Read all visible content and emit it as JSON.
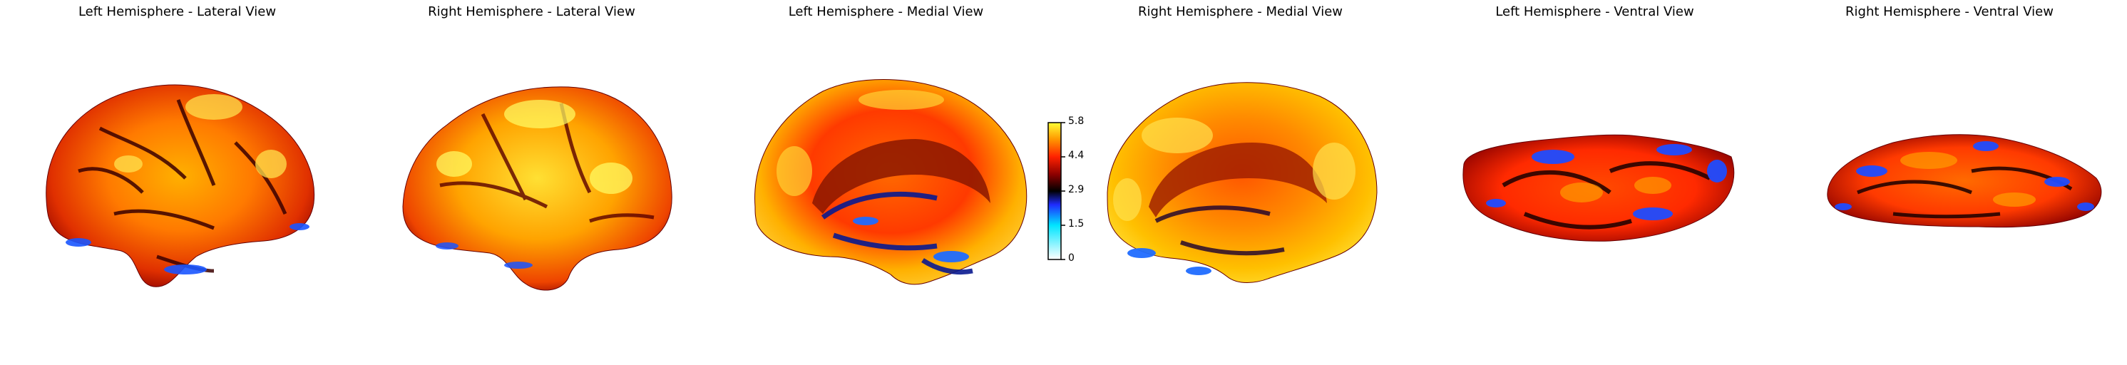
{
  "panels": [
    {
      "title": "Left Hemisphere - Lateral View"
    },
    {
      "title": "Right Hemisphere - Lateral View"
    },
    {
      "title": "Left Hemisphere - Medial View"
    },
    {
      "title": "Right Hemisphere - Medial View"
    },
    {
      "title": "Left Hemisphere - Ventral View"
    },
    {
      "title": "Right Hemisphere - Ventral View"
    }
  ],
  "colorbar": {
    "ticks": [
      "5.8",
      "4.4",
      "2.9",
      "1.5",
      "0"
    ],
    "colormap": [
      "#ffffff",
      "#00e5ff",
      "#1f2cff",
      "#000000",
      "#8b0000",
      "#ff2200",
      "#ff9900",
      "#ffff33"
    ]
  }
}
